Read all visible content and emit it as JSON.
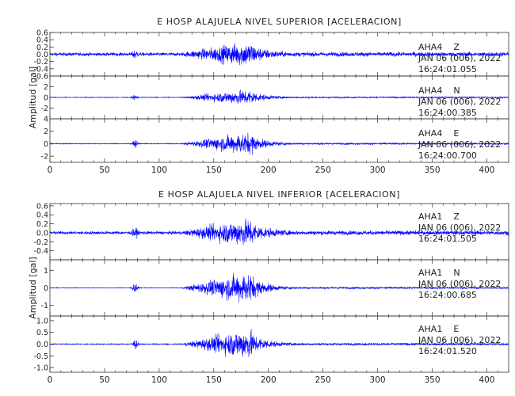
{
  "chart_data": [
    {
      "type": "line",
      "title": "E HOSP ALAJUELA NIVEL SUPERIOR [ACELERACION]",
      "ylabel": "Amplitud [gal]",
      "xlabel": "",
      "xlim": [
        0,
        420
      ],
      "xticks": [
        0,
        50,
        100,
        150,
        200,
        250,
        300,
        350,
        400
      ],
      "grid": false,
      "line_color": "#0000ff",
      "channels": [
        {
          "station": "AHA4",
          "component": "Z",
          "date": "JAN 06 (006), 2022",
          "time": "16:24:01.055",
          "ylim": [
            -0.6,
            0.6
          ],
          "yticks": [
            -0.6,
            -0.4,
            -0.2,
            0.0,
            0.2,
            0.4,
            0.6
          ],
          "yticklabels": [
            "-0.6",
            "-0.4",
            "-0.2",
            "0.0",
            "0.2",
            "0.4",
            "0.6"
          ],
          "noise": 0.08,
          "peak": 0.55
        },
        {
          "station": "AHA4",
          "component": "N",
          "date": "JAN 06 (006), 2022",
          "time": "16:24:00.385",
          "ylim": [
            -4,
            4
          ],
          "yticks": [
            -2,
            0,
            2
          ],
          "yticklabels": [
            "-2",
            "0",
            "2"
          ],
          "noise": 0.12,
          "peak": 2.3
        },
        {
          "station": "AHA4",
          "component": "E",
          "date": "JAN 06 (006), 2022",
          "time": "16:24:00.700",
          "ylim": [
            -3,
            4
          ],
          "yticks": [
            -2,
            0,
            2,
            4
          ],
          "yticklabels": [
            "-2",
            "0",
            "2",
            "4"
          ],
          "noise": 0.12,
          "peak": 2.8
        }
      ]
    },
    {
      "type": "line",
      "title": "E HOSP ALAJUELA NIVEL INFERIOR [ACELERACION]",
      "ylabel": "Amplitud [gal]",
      "xlabel": "",
      "xlim": [
        0,
        420
      ],
      "xticks": [
        0,
        50,
        100,
        150,
        200,
        250,
        300,
        350,
        400
      ],
      "grid": false,
      "line_color": "#0000ff",
      "channels": [
        {
          "station": "AHA1",
          "component": "Z",
          "date": "JAN 06 (006), 2022",
          "time": "16:24:01.505",
          "ylim": [
            -0.6,
            0.65
          ],
          "yticks": [
            -0.4,
            -0.2,
            0.0,
            0.2,
            0.4,
            0.6
          ],
          "yticklabels": [
            "-0.4",
            "-0.2",
            "0.0",
            "0.2",
            "0.4",
            "0.6"
          ],
          "noise": 0.06,
          "peak": 0.5
        },
        {
          "station": "AHA1",
          "component": "N",
          "date": "JAN 06 (006), 2022",
          "time": "16:24:00.685",
          "ylim": [
            -1.6,
            1.6
          ],
          "yticks": [
            -1,
            0,
            1
          ],
          "yticklabels": [
            "-1",
            "0",
            "1"
          ],
          "noise": 0.03,
          "peak": 1.4
        },
        {
          "station": "AHA1",
          "component": "E",
          "date": "JAN 06 (006), 2022",
          "time": "16:24:01.520",
          "ylim": [
            -1.2,
            1.2
          ],
          "yticks": [
            -1.0,
            -0.5,
            0.0,
            0.5,
            1.0
          ],
          "yticklabels": [
            "-1.0",
            "-0.5",
            "0.0",
            "0.5",
            "1.0"
          ],
          "noise": 0.04,
          "peak": 1.0
        }
      ]
    }
  ]
}
